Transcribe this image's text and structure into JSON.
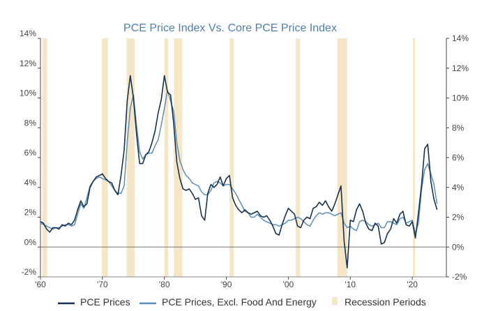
{
  "chart_data": {
    "type": "line",
    "title": "PCE Price Index Vs. Core PCE Price Index",
    "xlabel": "",
    "ylabel": "",
    "xlim": [
      1960,
      2025.5
    ],
    "ylim": [
      -2,
      14
    ],
    "y_ticks_left": [
      "14%",
      "12%",
      "10%",
      "8%",
      "6%",
      "4%",
      "2%",
      "0%",
      "-2%"
    ],
    "y_ticks_right": [
      "14%",
      "12%",
      "10%",
      "8%",
      "6%",
      "4%",
      "2%",
      "0%",
      "-2%"
    ],
    "y_tick_values": [
      14,
      12,
      10,
      8,
      6,
      4,
      2,
      0,
      -2
    ],
    "x_ticks": [
      {
        "value": 1960,
        "label": "'60"
      },
      {
        "value": 1970,
        "label": "'70"
      },
      {
        "value": 1980,
        "label": "'80"
      },
      {
        "value": 1990,
        "label": "'90"
      },
      {
        "value": 2000,
        "label": "'00"
      },
      {
        "value": 2010,
        "label": "'10"
      },
      {
        "value": 2020,
        "label": "'20"
      }
    ],
    "legend_position": "bottom",
    "zero_line": true,
    "recessions": [
      [
        1960.3,
        1961.1
      ],
      [
        1969.9,
        1970.9
      ],
      [
        1973.9,
        1975.2
      ],
      [
        1980.0,
        1980.6
      ],
      [
        1981.5,
        1982.9
      ],
      [
        1990.5,
        1991.2
      ],
      [
        2001.2,
        2001.9
      ],
      [
        2007.9,
        2009.5
      ],
      [
        2020.1,
        2020.4
      ]
    ],
    "series": [
      {
        "name": "PCE Prices",
        "color": "#16324f",
        "x": [
          1960.0,
          1960.5,
          1961.0,
          1961.5,
          1962.0,
          1962.5,
          1963.0,
          1963.5,
          1964.0,
          1964.5,
          1965.0,
          1965.5,
          1966.0,
          1966.5,
          1967.0,
          1967.5,
          1968.0,
          1968.5,
          1969.0,
          1969.5,
          1970.0,
          1970.5,
          1971.0,
          1971.5,
          1972.0,
          1972.5,
          1973.0,
          1973.5,
          1974.0,
          1974.5,
          1975.0,
          1975.5,
          1976.0,
          1976.5,
          1977.0,
          1977.5,
          1978.0,
          1978.5,
          1979.0,
          1979.5,
          1980.0,
          1980.5,
          1981.0,
          1981.5,
          1982.0,
          1982.5,
          1983.0,
          1983.5,
          1984.0,
          1984.5,
          1985.0,
          1985.5,
          1986.0,
          1986.5,
          1987.0,
          1987.5,
          1988.0,
          1988.5,
          1989.0,
          1989.5,
          1990.0,
          1990.5,
          1991.0,
          1991.5,
          1992.0,
          1992.5,
          1993.0,
          1993.5,
          1994.0,
          1994.5,
          1995.0,
          1995.5,
          1996.0,
          1996.5,
          1997.0,
          1997.5,
          1998.0,
          1998.5,
          1999.0,
          1999.5,
          2000.0,
          2000.5,
          2001.0,
          2001.5,
          2002.0,
          2002.5,
          2003.0,
          2003.5,
          2004.0,
          2004.5,
          2005.0,
          2005.5,
          2006.0,
          2006.5,
          2007.0,
          2007.5,
          2008.0,
          2008.5,
          2009.0,
          2009.5,
          2010.0,
          2010.5,
          2011.0,
          2011.5,
          2012.0,
          2012.5,
          2013.0,
          2013.5,
          2014.0,
          2014.5,
          2015.0,
          2015.5,
          2016.0,
          2016.5,
          2017.0,
          2017.5,
          2018.0,
          2018.5,
          2019.0,
          2019.5,
          2020.0,
          2020.5,
          2021.0,
          2021.5,
          2022.0,
          2022.5,
          2023.0,
          2023.5,
          2024.0
        ],
        "values": [
          1.7,
          1.6,
          1.2,
          1.0,
          1.3,
          1.3,
          1.2,
          1.5,
          1.4,
          1.6,
          1.5,
          1.8,
          2.5,
          3.1,
          2.7,
          2.9,
          4.0,
          4.4,
          4.7,
          4.8,
          4.9,
          4.6,
          4.4,
          4.3,
          3.8,
          3.5,
          4.8,
          6.5,
          9.8,
          11.5,
          10.0,
          7.6,
          5.6,
          5.6,
          6.2,
          6.4,
          7.0,
          7.8,
          9.0,
          9.9,
          11.5,
          10.4,
          10.2,
          8.3,
          5.7,
          4.6,
          3.9,
          3.8,
          3.9,
          3.6,
          3.2,
          3.3,
          2.1,
          1.8,
          3.6,
          4.2,
          4.0,
          4.2,
          4.7,
          4.1,
          4.6,
          4.8,
          3.3,
          2.8,
          2.5,
          2.3,
          2.5,
          2.3,
          2.2,
          2.3,
          2.4,
          2.1,
          2.0,
          2.1,
          1.8,
          1.4,
          0.9,
          0.8,
          1.5,
          2.1,
          2.6,
          2.4,
          2.2,
          1.4,
          1.3,
          1.8,
          2.0,
          1.9,
          2.6,
          2.7,
          3.0,
          2.8,
          3.1,
          2.7,
          2.4,
          2.9,
          3.5,
          4.1,
          0.4,
          -1.4,
          1.8,
          1.7,
          2.5,
          2.9,
          2.4,
          1.6,
          1.2,
          1.1,
          1.6,
          1.4,
          0.2,
          0.3,
          0.9,
          1.2,
          1.9,
          1.6,
          2.2,
          2.4,
          1.5,
          1.4,
          1.7,
          0.6,
          2.3,
          4.2,
          6.6,
          6.9,
          4.4,
          3.2,
          2.5
        ]
      },
      {
        "name": "PCE Prices, Excl. Food And Energy",
        "color": "#5b8db8",
        "x": [
          1960.0,
          1960.5,
          1961.0,
          1961.5,
          1962.0,
          1962.5,
          1963.0,
          1963.5,
          1964.0,
          1964.5,
          1965.0,
          1965.5,
          1966.0,
          1966.5,
          1967.0,
          1967.5,
          1968.0,
          1968.5,
          1969.0,
          1969.5,
          1970.0,
          1970.5,
          1971.0,
          1971.5,
          1972.0,
          1972.5,
          1973.0,
          1973.5,
          1974.0,
          1974.5,
          1975.0,
          1975.5,
          1976.0,
          1976.5,
          1977.0,
          1977.5,
          1978.0,
          1978.5,
          1979.0,
          1979.5,
          1980.0,
          1980.5,
          1981.0,
          1981.5,
          1982.0,
          1982.5,
          1983.0,
          1983.5,
          1984.0,
          1984.5,
          1985.0,
          1985.5,
          1986.0,
          1986.5,
          1987.0,
          1987.5,
          1988.0,
          1988.5,
          1989.0,
          1989.5,
          1990.0,
          1990.5,
          1991.0,
          1991.5,
          1992.0,
          1992.5,
          1993.0,
          1993.5,
          1994.0,
          1994.5,
          1995.0,
          1995.5,
          1996.0,
          1996.5,
          1997.0,
          1997.5,
          1998.0,
          1998.5,
          1999.0,
          1999.5,
          2000.0,
          2000.5,
          2001.0,
          2001.5,
          2002.0,
          2002.5,
          2003.0,
          2003.5,
          2004.0,
          2004.5,
          2005.0,
          2005.5,
          2006.0,
          2006.5,
          2007.0,
          2007.5,
          2008.0,
          2008.5,
          2009.0,
          2009.5,
          2010.0,
          2010.5,
          2011.0,
          2011.5,
          2012.0,
          2012.5,
          2013.0,
          2013.5,
          2014.0,
          2014.5,
          2015.0,
          2015.5,
          2016.0,
          2016.5,
          2017.0,
          2017.5,
          2018.0,
          2018.5,
          2019.0,
          2019.5,
          2020.0,
          2020.5,
          2021.0,
          2021.5,
          2022.0,
          2022.5,
          2023.0,
          2023.5,
          2024.0
        ],
        "values": [
          1.6,
          1.5,
          1.4,
          1.3,
          1.2,
          1.3,
          1.3,
          1.4,
          1.5,
          1.5,
          1.4,
          1.5,
          2.2,
          2.9,
          2.6,
          3.3,
          4.1,
          4.4,
          4.6,
          4.7,
          4.6,
          4.5,
          4.4,
          4.1,
          3.8,
          3.6,
          3.6,
          4.1,
          7.0,
          9.3,
          10.2,
          8.2,
          6.4,
          5.9,
          6.2,
          6.3,
          6.3,
          6.8,
          7.2,
          8.2,
          9.3,
          10.5,
          9.8,
          9.1,
          7.0,
          5.8,
          5.2,
          4.8,
          4.6,
          4.3,
          4.2,
          4.1,
          3.7,
          3.5,
          3.5,
          3.8,
          4.3,
          4.4,
          4.3,
          4.1,
          4.2,
          4.2,
          3.9,
          3.6,
          3.2,
          2.8,
          2.4,
          2.3,
          2.0,
          2.0,
          2.2,
          2.0,
          1.8,
          1.7,
          1.6,
          1.5,
          1.5,
          1.4,
          1.5,
          1.6,
          1.8,
          1.8,
          1.9,
          2.0,
          1.9,
          1.7,
          1.5,
          1.4,
          1.8,
          2.1,
          2.3,
          2.2,
          2.3,
          2.3,
          2.2,
          2.1,
          2.2,
          2.3,
          1.6,
          1.3,
          1.4,
          1.2,
          1.1,
          1.7,
          1.8,
          1.7,
          1.5,
          1.4,
          1.5,
          1.6,
          1.3,
          1.3,
          1.7,
          1.7,
          1.6,
          1.5,
          1.9,
          2.0,
          1.6,
          1.7,
          1.8,
          0.9,
          1.6,
          3.9,
          5.2,
          5.6,
          4.9,
          4.2,
          2.9
        ]
      }
    ],
    "legend": [
      {
        "label": "PCE Prices",
        "kind": "line",
        "color": "#16324f"
      },
      {
        "label": "PCE Prices, Excl. Food And Energy",
        "kind": "line",
        "color": "#5b8db8"
      },
      {
        "label": "Recession Periods",
        "kind": "band",
        "color": "#f5e6c8"
      }
    ]
  }
}
